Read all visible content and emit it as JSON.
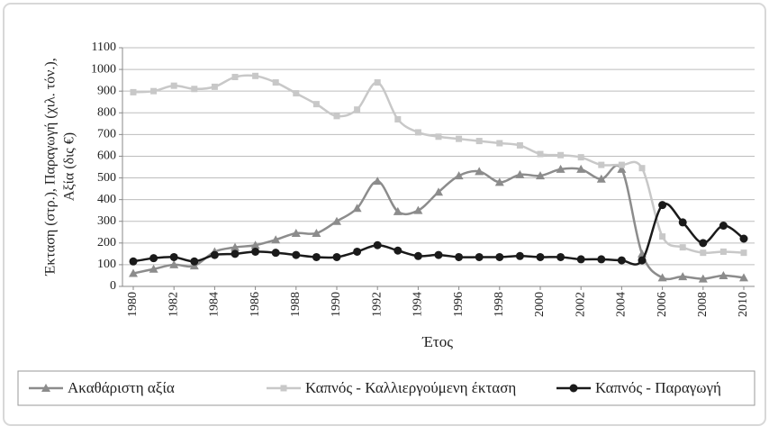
{
  "chart_data": {
    "type": "line",
    "xlabel": "Έτος",
    "ylabel": [
      "Έκταση (στρ.), Παραγωγή (χιλ. τόν.),",
      "Αξία (δις €)"
    ],
    "x": [
      1980,
      1981,
      1982,
      1983,
      1984,
      1985,
      1986,
      1987,
      1988,
      1989,
      1990,
      1991,
      1992,
      1993,
      1994,
      1995,
      1996,
      1997,
      1998,
      1999,
      2000,
      2001,
      2002,
      2003,
      2004,
      2005,
      2006,
      2007,
      2008,
      2009,
      2010
    ],
    "xlim": [
      1980,
      2010
    ],
    "xticks": [
      1980,
      1982,
      1984,
      1986,
      1988,
      1990,
      1992,
      1994,
      1996,
      1998,
      2000,
      2002,
      2004,
      2006,
      2008,
      2010
    ],
    "ylim": [
      0,
      1100
    ],
    "yticks": [
      0,
      100,
      200,
      300,
      400,
      500,
      600,
      700,
      800,
      900,
      1000,
      1100
    ],
    "grid": true,
    "legend": "bottom",
    "series": [
      {
        "name": "Ακαθάριστη αξία",
        "color": "#8c8c8c",
        "marker": "triangle",
        "values": [
          60,
          80,
          100,
          95,
          160,
          180,
          190,
          215,
          245,
          245,
          300,
          360,
          485,
          345,
          350,
          435,
          510,
          530,
          480,
          515,
          510,
          540,
          540,
          495,
          540,
          150,
          40,
          45,
          35,
          50,
          40
        ]
      },
      {
        "name": "Καπνός - Καλλιεργούμενη έκταση",
        "color": "#c8c8c8",
        "marker": "square",
        "values": [
          895,
          900,
          925,
          910,
          920,
          965,
          970,
          940,
          890,
          840,
          785,
          815,
          940,
          770,
          710,
          690,
          680,
          670,
          660,
          650,
          610,
          605,
          595,
          560,
          560,
          545,
          230,
          180,
          155,
          160,
          155
        ]
      },
      {
        "name": "Καπνός - Παραγωγή",
        "color": "#1a1a1a",
        "marker": "circle",
        "values": [
          115,
          130,
          135,
          115,
          145,
          150,
          160,
          155,
          145,
          135,
          135,
          160,
          190,
          165,
          140,
          145,
          135,
          135,
          135,
          140,
          135,
          135,
          125,
          125,
          120,
          120,
          375,
          295,
          200,
          280,
          220
        ]
      }
    ]
  }
}
